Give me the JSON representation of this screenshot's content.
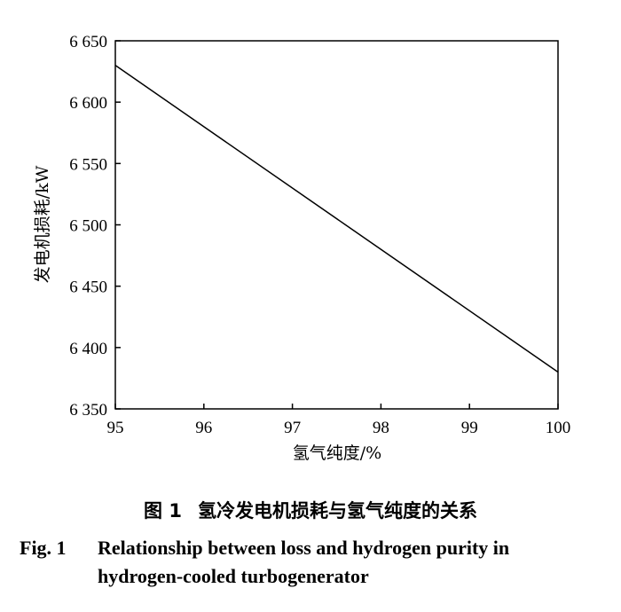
{
  "chart_data": {
    "type": "line",
    "xlabel": "氢气纯度/%",
    "ylabel": "发电机损耗/kW",
    "xlim": [
      95,
      100
    ],
    "ylim": [
      6350,
      6650
    ],
    "x_ticks": [
      "95",
      "96",
      "97",
      "98",
      "99",
      "100"
    ],
    "y_ticks": [
      "6 350",
      "6 400",
      "6 450",
      "6 500",
      "6 550",
      "6 600",
      "6 650"
    ],
    "grid": false,
    "series": [
      {
        "x": [
          95,
          100
        ],
        "values": [
          6630,
          6380
        ]
      }
    ]
  },
  "caption": {
    "zh_label": "图 1",
    "zh_text": "氢冷发电机损耗与氢气纯度的关系",
    "en_label": "Fig. 1",
    "en_line1": "Relationship between loss and hydrogen purity in",
    "en_line2": "hydrogen-cooled turbogenerator"
  },
  "colors": {
    "line": "#000000",
    "frame": "#000000"
  }
}
